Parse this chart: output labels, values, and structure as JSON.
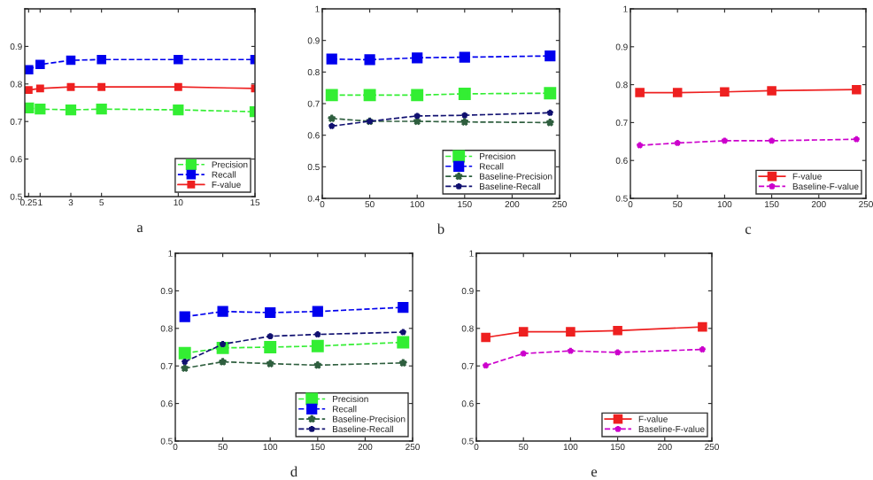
{
  "chart_data": [
    {
      "type": "line",
      "x": [
        0.25,
        1,
        3,
        5,
        10,
        15
      ],
      "xlim": [
        0,
        15
      ],
      "xticks": [
        0.25,
        1,
        3,
        5,
        10,
        15
      ],
      "ylim": [
        0.5,
        1
      ],
      "yticks": [
        0.5,
        0.6,
        0.7,
        0.8,
        0.9,
        {
          "value": 1,
          "label": null
        }
      ],
      "legend": "bottom right",
      "annotations": [
        "a"
      ],
      "series": [
        {
          "name": "Precision",
          "color": "#33ee33",
          "marker": "square",
          "line_style": "dashed",
          "values": [
            0.736,
            0.733,
            0.731,
            0.733,
            0.731,
            0.726
          ]
        },
        {
          "name": "Recall",
          "color": "#0000ee",
          "marker": "square",
          "line_style": "dashed",
          "values": [
            0.838,
            0.852,
            0.863,
            0.865,
            0.865,
            0.865
          ]
        },
        {
          "name": "F-value",
          "color": "#ee2020",
          "marker": "square",
          "line_style": "solid",
          "values": [
            0.784,
            0.788,
            0.792,
            0.792,
            0.792,
            0.788
          ]
        }
      ]
    },
    {
      "type": "line",
      "x": [
        10,
        50,
        100,
        150,
        240
      ],
      "xlim": [
        0,
        250
      ],
      "xticks": [
        0,
        50,
        100,
        150,
        200,
        250
      ],
      "ylim": [
        0.4,
        1
      ],
      "yticks": [
        0.4,
        0.5,
        0.6,
        0.7,
        0.8,
        0.9,
        1
      ],
      "legend": "bottom right",
      "annotations": [
        "b"
      ],
      "series": [
        {
          "name": "Precision",
          "color": "#33ee33",
          "marker": "square",
          "line_style": "dashed",
          "values": [
            0.727,
            0.727,
            0.727,
            0.731,
            0.733
          ]
        },
        {
          "name": "Recall",
          "color": "#0000ee",
          "marker": "square",
          "line_style": "dashed",
          "values": [
            0.841,
            0.839,
            0.845,
            0.847,
            0.851
          ]
        },
        {
          "name": "Baseline-Precision",
          "color": "#2f5f3f",
          "marker": "star",
          "line_style": "dashed",
          "values": [
            0.653,
            0.644,
            0.644,
            0.642,
            0.64
          ]
        },
        {
          "name": "Baseline-Recall",
          "color": "#101070",
          "marker": "star",
          "line_style": "dashed",
          "values": [
            0.629,
            0.644,
            0.661,
            0.663,
            0.671
          ]
        }
      ]
    },
    {
      "type": "line",
      "x": [
        10,
        50,
        100,
        150,
        240
      ],
      "xlim": [
        0,
        250
      ],
      "xticks": [
        0,
        50,
        100,
        150,
        200,
        250
      ],
      "ylim": [
        0.5,
        1
      ],
      "yticks": [
        0.5,
        0.6,
        0.7,
        0.8,
        0.9,
        1
      ],
      "legend": "bottom right",
      "annotations": [
        "c"
      ],
      "series": [
        {
          "name": "F-value",
          "color": "#ee2020",
          "marker": "square",
          "line_style": "solid",
          "values": [
            0.779,
            0.779,
            0.781,
            0.784,
            0.787
          ]
        },
        {
          "name": "Baseline-F-value",
          "color": "#cc00cc",
          "marker": "star",
          "line_style": "dashed",
          "values": [
            0.64,
            0.646,
            0.652,
            0.652,
            0.656
          ]
        }
      ]
    },
    {
      "type": "line",
      "x": [
        10,
        50,
        100,
        150,
        240
      ],
      "xlim": [
        0,
        250
      ],
      "xticks": [
        0,
        50,
        100,
        150,
        200,
        250
      ],
      "ylim": [
        0.5,
        1
      ],
      "yticks": [
        0.5,
        0.6,
        0.7,
        0.8,
        0.9,
        1
      ],
      "legend": "bottom right",
      "annotations": [
        "d"
      ],
      "series": [
        {
          "name": "Precision",
          "color": "#33ee33",
          "marker": "square",
          "line_style": "dashed",
          "values": [
            0.734,
            0.748,
            0.75,
            0.753,
            0.763
          ]
        },
        {
          "name": "Recall",
          "color": "#0000ee",
          "marker": "square",
          "line_style": "dashed",
          "values": [
            0.831,
            0.845,
            0.842,
            0.845,
            0.856
          ]
        },
        {
          "name": "Baseline-Precision",
          "color": "#2f5f3f",
          "marker": "star",
          "line_style": "dashed",
          "values": [
            0.694,
            0.711,
            0.706,
            0.702,
            0.708
          ]
        },
        {
          "name": "Baseline-Recall",
          "color": "#101070",
          "marker": "star",
          "line_style": "dashed",
          "values": [
            0.711,
            0.758,
            0.779,
            0.784,
            0.79
          ]
        }
      ]
    },
    {
      "type": "line",
      "x": [
        10,
        50,
        100,
        150,
        240
      ],
      "xlim": [
        0,
        250
      ],
      "xticks": [
        0,
        50,
        100,
        150,
        200,
        250
      ],
      "ylim": [
        0.5,
        1
      ],
      "yticks": [
        0.5,
        0.6,
        0.7,
        0.8,
        0.9,
        1
      ],
      "legend": "bottom right",
      "annotations": [
        "e"
      ],
      "series": [
        {
          "name": "F-value",
          "color": "#ee2020",
          "marker": "square",
          "line_style": "solid",
          "values": [
            0.776,
            0.791,
            0.791,
            0.794,
            0.804
          ]
        },
        {
          "name": "Baseline-F-value",
          "color": "#cc00cc",
          "marker": "star",
          "line_style": "dashed",
          "values": [
            0.701,
            0.733,
            0.74,
            0.736,
            0.744
          ]
        }
      ]
    }
  ]
}
